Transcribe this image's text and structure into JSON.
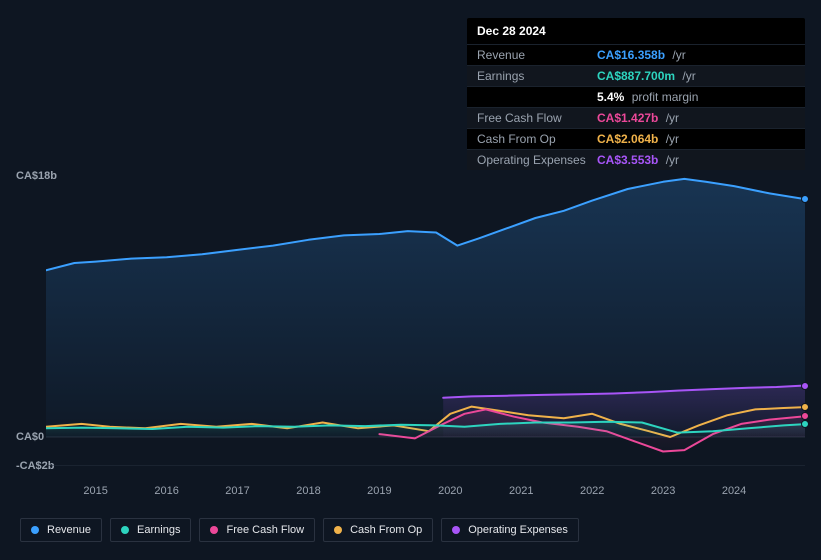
{
  "tooltip": {
    "date": "Dec 28 2024",
    "rows": [
      {
        "label": "Revenue",
        "value": "CA$16.358b",
        "unit": "/yr",
        "color": "#3ba0ff",
        "extra": ""
      },
      {
        "label": "Earnings",
        "value": "CA$887.700m",
        "unit": "/yr",
        "color": "#2dd4bf",
        "extra": ""
      },
      {
        "label": "",
        "value": "5.4%",
        "unit": "profit margin",
        "color": "#ffffff",
        "extra": ""
      },
      {
        "label": "Free Cash Flow",
        "value": "CA$1.427b",
        "unit": "/yr",
        "color": "#ec4899",
        "extra": ""
      },
      {
        "label": "Cash From Op",
        "value": "CA$2.064b",
        "unit": "/yr",
        "color": "#f0b24a",
        "extra": ""
      },
      {
        "label": "Operating Expenses",
        "value": "CA$3.553b",
        "unit": "/yr",
        "color": "#a855f7",
        "extra": ""
      }
    ]
  },
  "chart": {
    "type": "area-line",
    "background": "#0e1622",
    "plot_bg_gradient_top": "#1a2433",
    "plot_bg_gradient_bottom": "#0e1622",
    "ylim": [
      -2,
      18
    ],
    "y_zero": 0,
    "ylabels": [
      {
        "v": 18,
        "text": "CA$18b"
      },
      {
        "v": 0,
        "text": "CA$0"
      },
      {
        "v": -2,
        "text": "-CA$2b"
      }
    ],
    "xlim": [
      2014.3,
      2025.0
    ],
    "xlabels": [
      2015,
      2016,
      2017,
      2018,
      2019,
      2020,
      2021,
      2022,
      2023,
      2024
    ],
    "xgrid_step": 1,
    "series": [
      {
        "name": "Revenue",
        "color": "#3ba0ff",
        "fill_opacity": 0.22,
        "line_width": 2,
        "data": [
          [
            2014.3,
            11.5
          ],
          [
            2014.7,
            12.0
          ],
          [
            2015.0,
            12.1
          ],
          [
            2015.5,
            12.3
          ],
          [
            2016.0,
            12.4
          ],
          [
            2016.5,
            12.6
          ],
          [
            2017.0,
            12.9
          ],
          [
            2017.5,
            13.2
          ],
          [
            2018.0,
            13.6
          ],
          [
            2018.5,
            13.9
          ],
          [
            2019.0,
            14.0
          ],
          [
            2019.4,
            14.2
          ],
          [
            2019.8,
            14.1
          ],
          [
            2020.1,
            13.2
          ],
          [
            2020.4,
            13.7
          ],
          [
            2020.8,
            14.4
          ],
          [
            2021.2,
            15.1
          ],
          [
            2021.6,
            15.6
          ],
          [
            2022.0,
            16.3
          ],
          [
            2022.5,
            17.1
          ],
          [
            2023.0,
            17.6
          ],
          [
            2023.3,
            17.8
          ],
          [
            2023.6,
            17.6
          ],
          [
            2024.0,
            17.3
          ],
          [
            2024.5,
            16.8
          ],
          [
            2025.0,
            16.4
          ]
        ]
      },
      {
        "name": "Operating Expenses",
        "color": "#a855f7",
        "fill_opacity": 0.18,
        "line_width": 2,
        "start_x": 2019.9,
        "data": [
          [
            2019.9,
            2.7
          ],
          [
            2020.3,
            2.8
          ],
          [
            2020.8,
            2.85
          ],
          [
            2021.3,
            2.9
          ],
          [
            2021.8,
            2.95
          ],
          [
            2022.3,
            3.0
          ],
          [
            2022.8,
            3.1
          ],
          [
            2023.2,
            3.2
          ],
          [
            2023.7,
            3.3
          ],
          [
            2024.2,
            3.4
          ],
          [
            2024.6,
            3.45
          ],
          [
            2025.0,
            3.55
          ]
        ]
      },
      {
        "name": "Cash From Op",
        "color": "#f0b24a",
        "fill_opacity": 0.0,
        "line_width": 2,
        "data": [
          [
            2014.3,
            0.7
          ],
          [
            2014.8,
            0.9
          ],
          [
            2015.2,
            0.7
          ],
          [
            2015.7,
            0.6
          ],
          [
            2016.2,
            0.9
          ],
          [
            2016.7,
            0.7
          ],
          [
            2017.2,
            0.9
          ],
          [
            2017.7,
            0.6
          ],
          [
            2018.2,
            1.0
          ],
          [
            2018.7,
            0.6
          ],
          [
            2019.2,
            0.8
          ],
          [
            2019.7,
            0.4
          ],
          [
            2020.0,
            1.6
          ],
          [
            2020.3,
            2.1
          ],
          [
            2020.7,
            1.8
          ],
          [
            2021.1,
            1.5
          ],
          [
            2021.6,
            1.3
          ],
          [
            2022.0,
            1.6
          ],
          [
            2022.4,
            0.9
          ],
          [
            2022.8,
            0.4
          ],
          [
            2023.1,
            0.0
          ],
          [
            2023.5,
            0.8
          ],
          [
            2023.9,
            1.5
          ],
          [
            2024.3,
            1.9
          ],
          [
            2024.7,
            2.0
          ],
          [
            2025.0,
            2.06
          ]
        ]
      },
      {
        "name": "Free Cash Flow",
        "color": "#ec4899",
        "fill_opacity": 0.12,
        "line_width": 2,
        "start_x": 2019.0,
        "data": [
          [
            2019.0,
            0.2
          ],
          [
            2019.5,
            -0.1
          ],
          [
            2019.9,
            0.9
          ],
          [
            2020.2,
            1.6
          ],
          [
            2020.5,
            1.9
          ],
          [
            2020.9,
            1.4
          ],
          [
            2021.3,
            1.0
          ],
          [
            2021.8,
            0.7
          ],
          [
            2022.2,
            0.4
          ],
          [
            2022.6,
            -0.3
          ],
          [
            2023.0,
            -1.0
          ],
          [
            2023.3,
            -0.9
          ],
          [
            2023.7,
            0.2
          ],
          [
            2024.1,
            0.9
          ],
          [
            2024.5,
            1.2
          ],
          [
            2025.0,
            1.43
          ]
        ]
      },
      {
        "name": "Earnings",
        "color": "#2dd4bf",
        "fill_opacity": 0.15,
        "line_width": 2,
        "data": [
          [
            2014.3,
            0.6
          ],
          [
            2014.8,
            0.65
          ],
          [
            2015.3,
            0.6
          ],
          [
            2015.8,
            0.55
          ],
          [
            2016.3,
            0.7
          ],
          [
            2016.8,
            0.65
          ],
          [
            2017.3,
            0.75
          ],
          [
            2017.8,
            0.7
          ],
          [
            2018.3,
            0.8
          ],
          [
            2018.8,
            0.75
          ],
          [
            2019.3,
            0.85
          ],
          [
            2019.8,
            0.8
          ],
          [
            2020.2,
            0.7
          ],
          [
            2020.7,
            0.9
          ],
          [
            2021.2,
            1.0
          ],
          [
            2021.7,
            1.0
          ],
          [
            2022.2,
            1.05
          ],
          [
            2022.7,
            1.0
          ],
          [
            2023.2,
            0.3
          ],
          [
            2023.7,
            0.4
          ],
          [
            2024.2,
            0.6
          ],
          [
            2024.7,
            0.8
          ],
          [
            2025.0,
            0.89
          ]
        ]
      }
    ],
    "cursor_x": 2025.0,
    "markers_at_cursor": true
  },
  "legend": [
    {
      "label": "Revenue",
      "color": "#3ba0ff"
    },
    {
      "label": "Earnings",
      "color": "#2dd4bf"
    },
    {
      "label": "Free Cash Flow",
      "color": "#ec4899"
    },
    {
      "label": "Cash From Op",
      "color": "#f0b24a"
    },
    {
      "label": "Operating Expenses",
      "color": "#a855f7"
    }
  ]
}
